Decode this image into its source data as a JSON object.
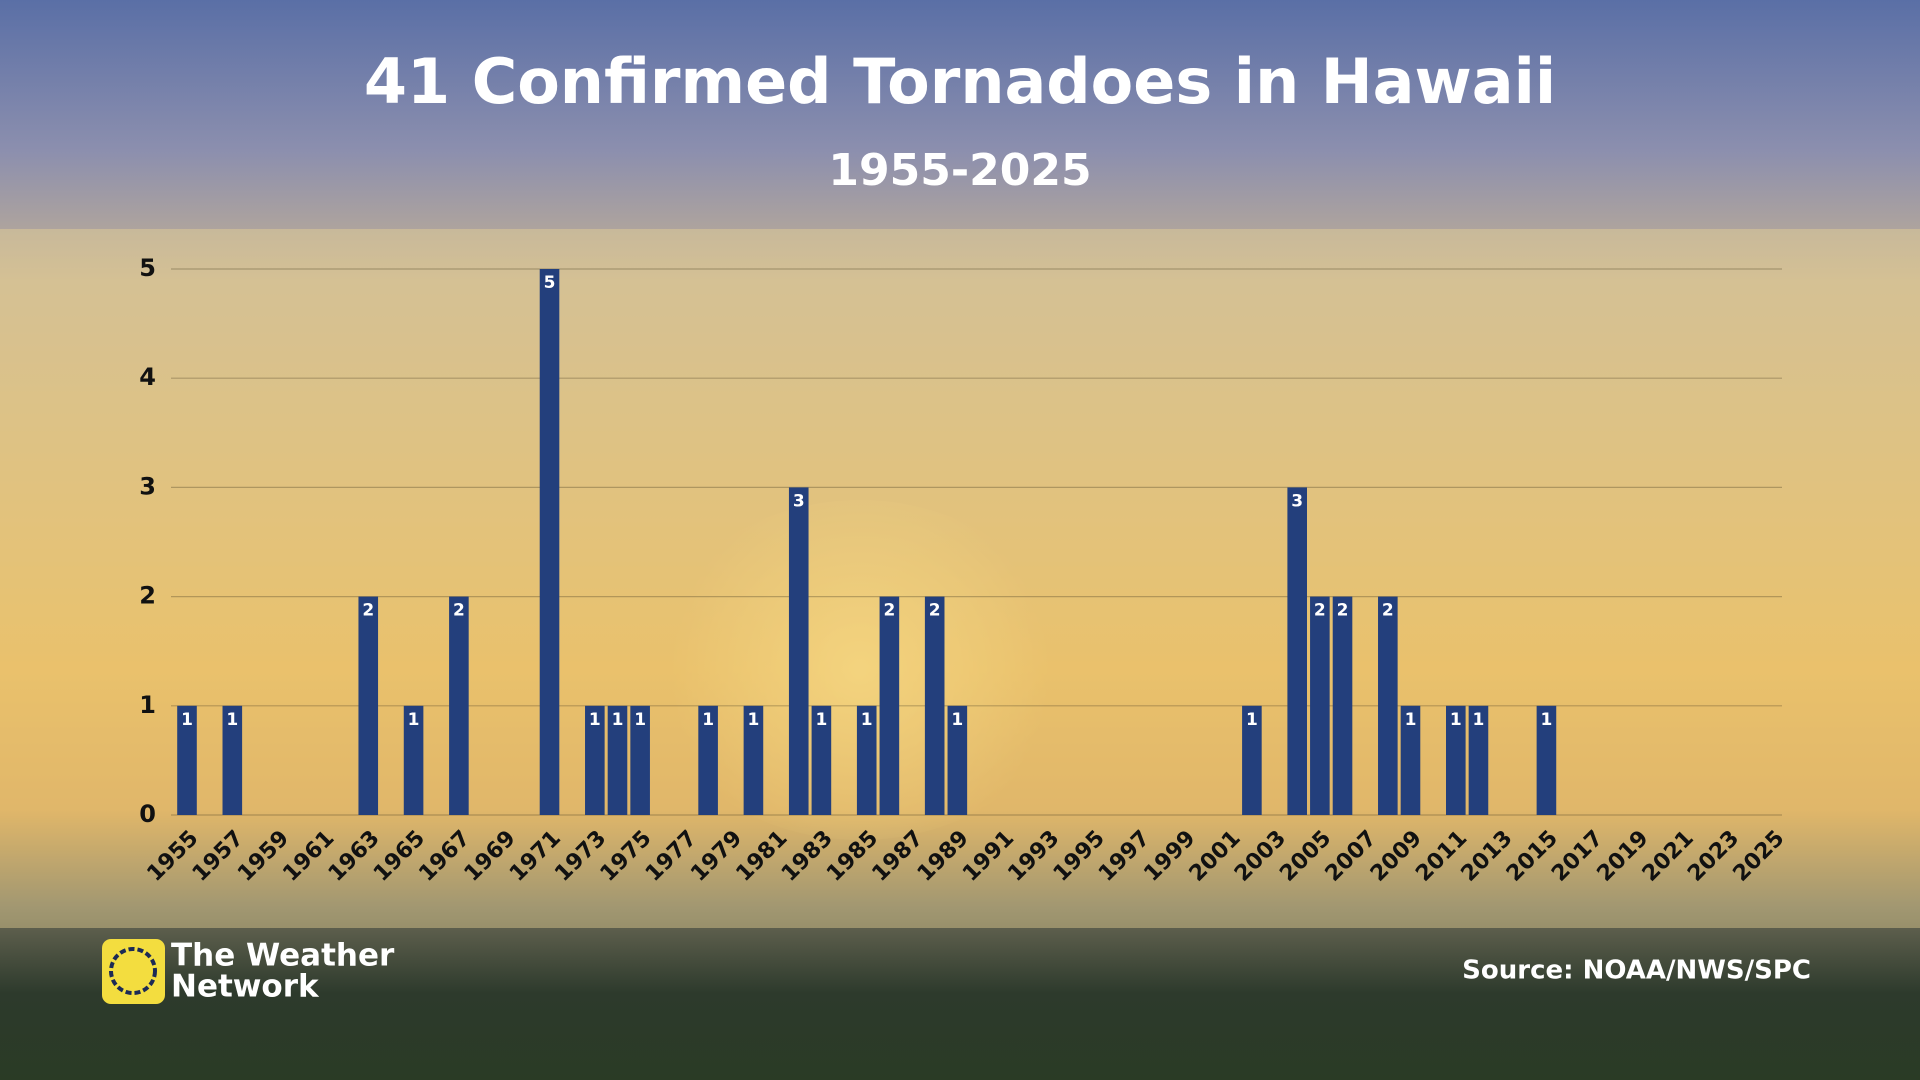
{
  "chart_data": {
    "type": "bar",
    "title": "41 Confirmed Tornadoes in Hawaii",
    "subtitle": "1955-2025",
    "categories": [
      "1955",
      null,
      "1957",
      null,
      "1959",
      null,
      "1961",
      null,
      "1963",
      null,
      "1965",
      null,
      "1967",
      null,
      "1969",
      null,
      "1971",
      null,
      "1973",
      null,
      "1975",
      null,
      "1977",
      null,
      "1979",
      null,
      "1981",
      null,
      "1983",
      null,
      "1985",
      null,
      "1987",
      null,
      "1989",
      null,
      "1991",
      null,
      "1993",
      null,
      "1995",
      null,
      "1997",
      null,
      "1999",
      null,
      "2001",
      null,
      "2003",
      null,
      "2005",
      null,
      "2007",
      null,
      "2009",
      null,
      "2011",
      null,
      "2013",
      null,
      "2015",
      null,
      "2017",
      null,
      "2019",
      null,
      "2021",
      null,
      "2023",
      null,
      "2025"
    ],
    "values": [
      1,
      0,
      1,
      0,
      0,
      0,
      0,
      0,
      2,
      0,
      1,
      0,
      2,
      0,
      0,
      0,
      5,
      0,
      1,
      1,
      1,
      0,
      0,
      1,
      0,
      1,
      0,
      3,
      1,
      0,
      1,
      2,
      0,
      2,
      1,
      0,
      0,
      0,
      0,
      0,
      0,
      0,
      0,
      0,
      0,
      0,
      0,
      1,
      0,
      3,
      2,
      2,
      0,
      2,
      1,
      0,
      1,
      1,
      0,
      0,
      1,
      0,
      0,
      0,
      0,
      0,
      0,
      0,
      0,
      0,
      0
    ],
    "color": "#233f7c",
    "ylim": [
      0,
      5
    ],
    "yticks": [
      0,
      1,
      2,
      3,
      4,
      5
    ],
    "grid": true
  },
  "brand": {
    "line1": "The Weather",
    "line2": "Network"
  },
  "source": "Source: NOAA/NWS/SPC"
}
